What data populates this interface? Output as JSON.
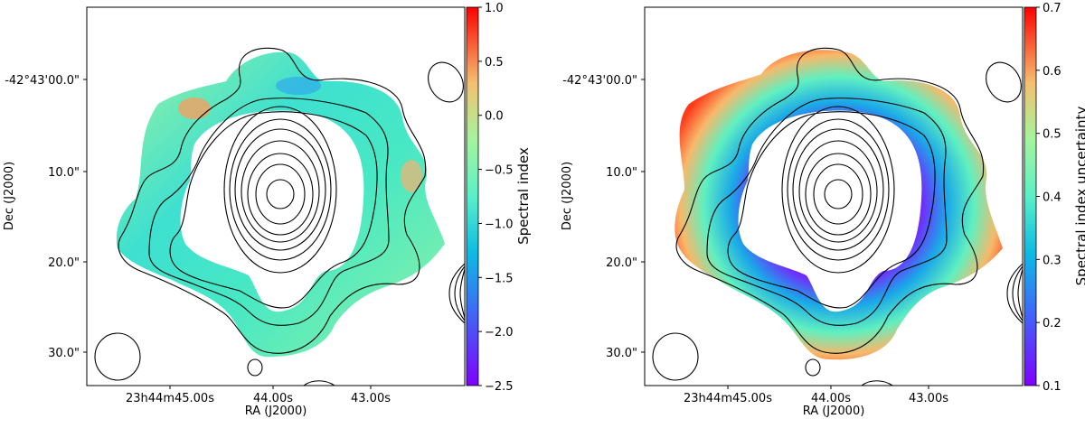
{
  "chart_data": [
    {
      "type": "heatmap",
      "title": "",
      "xlabel": "RA (J2000)",
      "ylabel": "Dec (J2000)",
      "xticks": [
        "23h44m45.00s",
        "44.00s",
        "43.00s"
      ],
      "yticks": [
        "-42°43'00.0\"",
        "10.0\"",
        "20.0\"",
        "30.0\""
      ],
      "colorbar": {
        "label": "Spectral index",
        "range": [
          -2.5,
          1.0
        ],
        "ticks": [
          "1.0",
          "0.5",
          "0.0",
          "−0.5",
          "−1.0",
          "−1.5",
          "−2.0",
          "−2.5"
        ],
        "colormap": "rainbow"
      },
      "contours": true
    },
    {
      "type": "heatmap",
      "title": "",
      "xlabel": "RA (J2000)",
      "ylabel": "Dec (J2000)",
      "xticks": [
        "23h44m45.00s",
        "44.00s",
        "43.00s"
      ],
      "yticks": [
        "-42°43'00.0\"",
        "10.0\"",
        "20.0\"",
        "30.0\""
      ],
      "colorbar": {
        "label": "Spectral index uncertainty",
        "range": [
          0.1,
          0.7
        ],
        "ticks": [
          "0.7",
          "0.6",
          "0.5",
          "0.4",
          "0.3",
          "0.2",
          "0.1"
        ],
        "colormap": "rainbow"
      },
      "contours": true
    }
  ]
}
